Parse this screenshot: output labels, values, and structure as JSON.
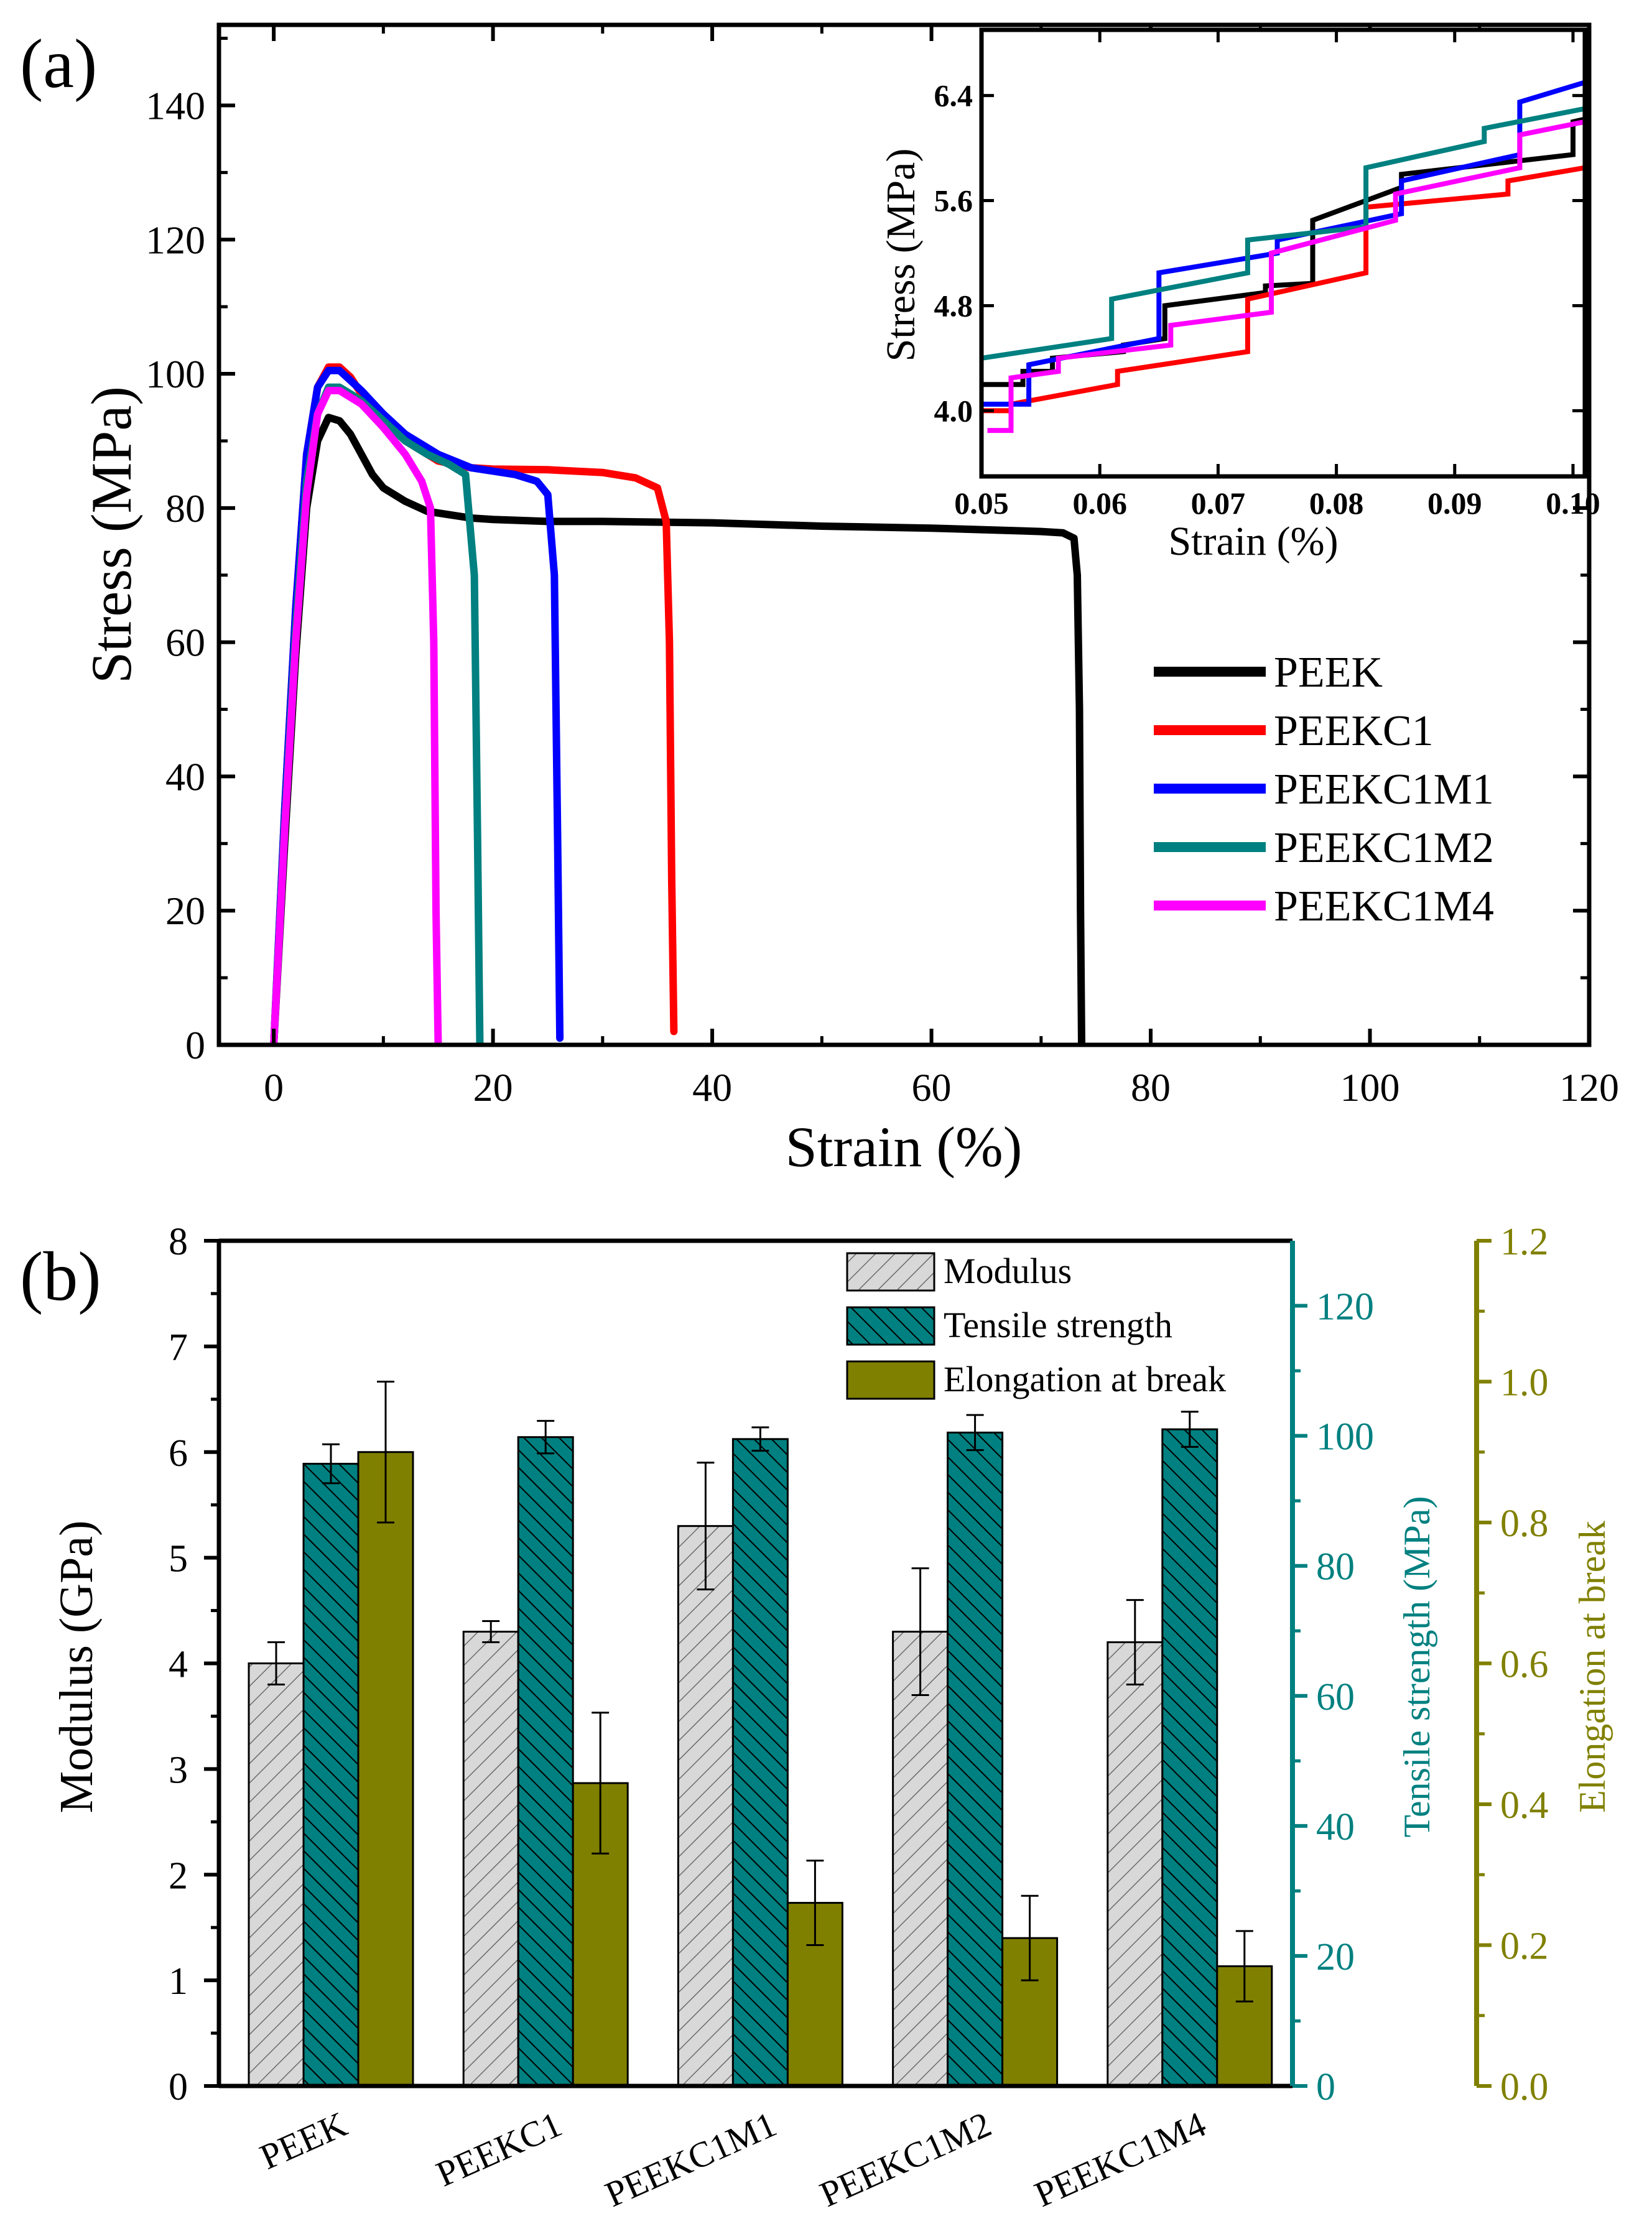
{
  "panels": {
    "a": {
      "label": "(a)"
    },
    "b": {
      "label": "(b)"
    }
  },
  "colors": {
    "PEEK": "#000000",
    "PEEKC1": "#ff0000",
    "PEEKC1M1": "#0000ff",
    "PEEKC1M2": "#008080",
    "PEEKC1M4": "#ff00ff",
    "modulus_fill": "#d8d8d8",
    "tensile_fill": "#008080",
    "elong_fill": "#808000"
  },
  "chart_data": [
    {
      "id": "a_main",
      "type": "line",
      "xlabel": "Strain (%)",
      "ylabel": "Stress (MPa)",
      "xlim": [
        -5,
        120
      ],
      "ylim": [
        0,
        152
      ],
      "xticks": [
        0,
        20,
        40,
        60,
        80,
        100,
        120
      ],
      "yticks": [
        0,
        20,
        40,
        60,
        80,
        100,
        120,
        140
      ],
      "legend_position": "right-middle",
      "series": [
        {
          "name": "PEEK",
          "x": [
            0,
            1,
            2,
            3,
            4,
            5,
            6,
            7,
            8,
            9,
            10,
            12,
            14,
            16,
            18,
            20,
            25,
            30,
            40,
            50,
            60,
            70,
            72,
            73,
            73.3,
            73.5,
            73.6,
            73.7
          ],
          "y": [
            0,
            30,
            58,
            80,
            90,
            93.5,
            93,
            91,
            88,
            85,
            83,
            81,
            79.5,
            79,
            78.5,
            78.3,
            78,
            78,
            77.8,
            77.3,
            77,
            76.5,
            76.3,
            75.5,
            70,
            50,
            20,
            0
          ]
        },
        {
          "name": "PEEKC1",
          "x": [
            0,
            1,
            2,
            3,
            4,
            5,
            6,
            7,
            8,
            10,
            12,
            15,
            18,
            20,
            25,
            30,
            33,
            35,
            35.8,
            36.1,
            36.3,
            36.5
          ],
          "y": [
            0,
            35,
            65,
            88,
            98,
            101,
            101,
            99.5,
            97,
            93,
            90,
            87,
            86,
            85.8,
            85.7,
            85.3,
            84.5,
            83,
            78,
            60,
            25,
            2
          ]
        },
        {
          "name": "PEEKC1M1",
          "x": [
            0,
            1,
            2,
            3,
            4,
            5,
            6,
            7,
            8,
            10,
            12,
            15,
            18,
            20,
            22,
            24,
            25,
            25.6,
            25.9,
            26.1
          ],
          "y": [
            0,
            35,
            65,
            88,
            98,
            100.5,
            100.5,
            99,
            97.5,
            94,
            91,
            88,
            86,
            85.5,
            85,
            84,
            82,
            70,
            30,
            1
          ]
        },
        {
          "name": "PEEKC1M2",
          "x": [
            0,
            1,
            2,
            3,
            4,
            5,
            6,
            8,
            10,
            12,
            14,
            16,
            17.5,
            18.3,
            18.6,
            18.8
          ],
          "y": [
            0,
            33,
            62,
            84,
            94,
            98,
            98,
            96,
            93,
            90,
            88,
            86.5,
            85,
            70,
            30,
            0
          ]
        },
        {
          "name": "PEEKC1M4",
          "x": [
            0,
            1,
            2,
            3,
            4,
            5,
            6,
            8,
            10,
            12,
            13.5,
            14.3,
            14.6,
            14.8,
            15
          ],
          "y": [
            0,
            32,
            60,
            82,
            94,
            97.5,
            97.5,
            95.5,
            92,
            88,
            84,
            80,
            60,
            20,
            0
          ]
        }
      ]
    },
    {
      "id": "a_inset",
      "type": "line",
      "xlabel": "Strain (%)",
      "ylabel": "Stress (MPa)",
      "xlim": [
        0.05,
        0.101
      ],
      "ylim": [
        3.5,
        6.9
      ],
      "xticks": [
        0.05,
        0.06,
        0.07,
        0.08,
        0.09,
        0.1
      ],
      "xtick_labels": [
        "0.05",
        "0.06",
        "0.07",
        "0.08",
        "0.09",
        "0.10"
      ],
      "yticks": [
        4.0,
        4.8,
        5.6,
        6.4
      ],
      "series": [
        {
          "name": "PEEK",
          "x": [
            0.05,
            0.0535,
            0.0535,
            0.056,
            0.056,
            0.062,
            0.062,
            0.0655,
            0.0655,
            0.074,
            0.074,
            0.078,
            0.078,
            0.0855,
            0.0855,
            0.1,
            0.1,
            0.101
          ],
          "y": [
            4.2,
            4.2,
            4.3,
            4.3,
            4.4,
            4.45,
            4.5,
            4.55,
            4.8,
            4.9,
            4.95,
            4.97,
            5.45,
            5.7,
            5.8,
            5.95,
            6.2,
            6.22
          ]
        },
        {
          "name": "PEEKC1",
          "x": [
            0.05,
            0.0525,
            0.0525,
            0.0615,
            0.0615,
            0.0725,
            0.0725,
            0.0825,
            0.0825,
            0.0945,
            0.0945,
            0.101
          ],
          "y": [
            4.0,
            4.0,
            4.05,
            4.2,
            4.3,
            4.45,
            4.85,
            5.05,
            5.55,
            5.65,
            5.75,
            5.85
          ]
        },
        {
          "name": "PEEKC1M1",
          "x": [
            0.05,
            0.054,
            0.054,
            0.065,
            0.065,
            0.075,
            0.075,
            0.0855,
            0.0855,
            0.0955,
            0.0955,
            0.101
          ],
          "y": [
            4.05,
            4.05,
            4.35,
            4.55,
            5.05,
            5.2,
            5.3,
            5.5,
            5.75,
            5.95,
            6.35,
            6.5
          ]
        },
        {
          "name": "PEEKC1M2",
          "x": [
            0.05,
            0.061,
            0.061,
            0.0725,
            0.0725,
            0.0825,
            0.0825,
            0.0925,
            0.0925,
            0.101
          ],
          "y": [
            4.4,
            4.55,
            4.85,
            5.05,
            5.3,
            5.4,
            5.85,
            6.05,
            6.15,
            6.3
          ]
        },
        {
          "name": "PEEKC1M4",
          "x": [
            0.0505,
            0.0525,
            0.0525,
            0.0565,
            0.0565,
            0.066,
            0.066,
            0.0745,
            0.0745,
            0.085,
            0.085,
            0.0955,
            0.0955,
            0.101
          ],
          "y": [
            3.85,
            3.85,
            4.25,
            4.3,
            4.4,
            4.5,
            4.65,
            4.75,
            5.2,
            5.45,
            5.65,
            5.85,
            6.1,
            6.2
          ]
        }
      ]
    },
    {
      "id": "b",
      "type": "bar",
      "categories": [
        "PEEK",
        "PEEKC1",
        "PEEKC1M1",
        "PEEKC1M2",
        "PEEKC1M4"
      ],
      "ylabel": "Modulus (GPa)",
      "ylabel_right1": "Tensile strength (MPa)",
      "ylabel_right2": "Elongation at break",
      "ylim_left": [
        0,
        8
      ],
      "ylim_right1": [
        0,
        130
      ],
      "ylim_right2": [
        0,
        1.2
      ],
      "yticks_left": [
        "0",
        "1",
        "2",
        "3",
        "4",
        "5",
        "6",
        "7",
        "8"
      ],
      "yticks_right1": [
        "0",
        "20",
        "40",
        "60",
        "80",
        "100",
        "120"
      ],
      "yticks_right2": [
        "0.0",
        "0.2",
        "0.4",
        "0.6",
        "0.8",
        "1.0",
        "1.2"
      ],
      "legend_position": "top-right",
      "series": [
        {
          "name": "Modulus",
          "axis": "left",
          "values": [
            4.0,
            4.3,
            5.3,
            4.3,
            4.2
          ],
          "errors": [
            0.2,
            0.1,
            0.6,
            0.6,
            0.4
          ]
        },
        {
          "name": "Tensile strength",
          "axis": "right1",
          "values": [
            95.7,
            99.8,
            99.5,
            100.5,
            101.0
          ],
          "errors": [
            3.0,
            2.5,
            1.8,
            2.7,
            2.7
          ]
        },
        {
          "name": "Elongation at break",
          "axis": "right2",
          "values": [
            0.9,
            0.43,
            0.26,
            0.21,
            0.17
          ],
          "errors": [
            0.1,
            0.1,
            0.06,
            0.06,
            0.05
          ]
        }
      ]
    }
  ]
}
